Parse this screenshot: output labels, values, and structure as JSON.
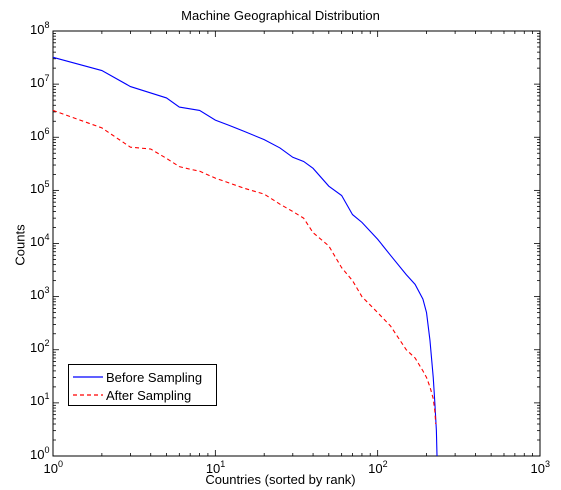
{
  "chart_data": {
    "type": "line",
    "title": "Machine Geographical Distribution",
    "xlabel": "Countries (sorted by rank)",
    "ylabel": "Counts",
    "xscale": "log",
    "yscale": "log",
    "xlim": [
      1,
      1000
    ],
    "ylim": [
      1,
      100000000
    ],
    "grid": false,
    "legend_position": "bottom-left",
    "x_ticks": [
      {
        "base": "10",
        "exp": "0",
        "value": 1
      },
      {
        "base": "10",
        "exp": "1",
        "value": 10
      },
      {
        "base": "10",
        "exp": "2",
        "value": 100
      },
      {
        "base": "10",
        "exp": "3",
        "value": 1000
      }
    ],
    "y_ticks": [
      {
        "base": "10",
        "exp": "0",
        "value": 1
      },
      {
        "base": "10",
        "exp": "1",
        "value": 10
      },
      {
        "base": "10",
        "exp": "2",
        "value": 100
      },
      {
        "base": "10",
        "exp": "3",
        "value": 1000
      },
      {
        "base": "10",
        "exp": "4",
        "value": 10000
      },
      {
        "base": "10",
        "exp": "5",
        "value": 100000
      },
      {
        "base": "10",
        "exp": "6",
        "value": 1000000
      },
      {
        "base": "10",
        "exp": "7",
        "value": 10000000
      },
      {
        "base": "10",
        "exp": "8",
        "value": 100000000
      }
    ],
    "series": [
      {
        "name": "Before Sampling",
        "color": "#0000ff",
        "dash": "solid",
        "x": [
          1,
          2,
          3,
          5,
          6,
          8,
          10,
          12,
          15,
          20,
          25,
          30,
          35,
          40,
          50,
          60,
          70,
          80,
          100,
          120,
          150,
          170,
          190,
          200,
          210,
          220,
          225,
          230,
          232
        ],
        "y": [
          32000000,
          18000000,
          9000000,
          5500000,
          3700000,
          3200000,
          2100000,
          1700000,
          1300000,
          900000,
          630000,
          420000,
          350000,
          260000,
          120000,
          80000,
          35000,
          25000,
          12000,
          6000,
          2600,
          1700,
          900,
          500,
          150,
          30,
          10,
          3,
          1
        ]
      },
      {
        "name": "After Sampling",
        "color": "#ff0000",
        "dash": "dashed",
        "x": [
          1,
          2,
          3,
          4,
          5,
          6,
          7,
          8,
          10,
          12,
          15,
          20,
          25,
          30,
          35,
          40,
          50,
          60,
          70,
          80,
          100,
          120,
          150,
          170,
          190,
          200,
          210,
          220,
          225,
          228
        ],
        "y": [
          3200000,
          1500000,
          650000,
          600000,
          400000,
          280000,
          250000,
          230000,
          170000,
          140000,
          110000,
          85000,
          55000,
          40000,
          30000,
          16000,
          9000,
          3500,
          2000,
          1000,
          500,
          280,
          100,
          70,
          40,
          30,
          20,
          12,
          7,
          4
        ]
      }
    ]
  }
}
